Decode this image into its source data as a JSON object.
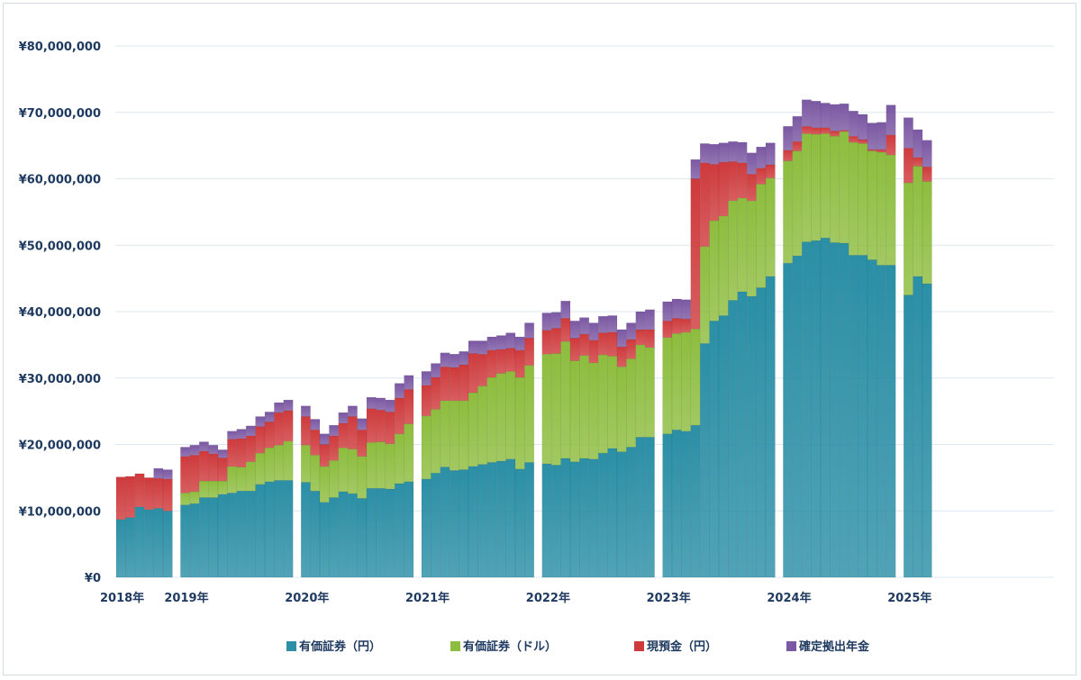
{
  "chart_data": {
    "type": "bar",
    "stacked": true,
    "title": "",
    "xlabel": "",
    "ylabel": "",
    "ylim": [
      0,
      80000000
    ],
    "yticks": [
      0,
      10000000,
      20000000,
      30000000,
      40000000,
      50000000,
      60000000,
      70000000,
      80000000
    ],
    "ytick_labels": [
      "¥0",
      "¥10,000,000",
      "¥20,000,000",
      "¥30,000,000",
      "¥40,000,000",
      "¥50,000,000",
      "¥60,000,000",
      "¥70,000,000",
      "¥80,000,000"
    ],
    "grid": true,
    "legend_position": "bottom",
    "series": [
      {
        "name": "有価証券（円）",
        "color": "#2b8fa6"
      },
      {
        "name": "有価証券（ドル）",
        "color": "#8dbd3e"
      },
      {
        "name": "現預金（円）",
        "color": "#cf3a3c"
      },
      {
        "name": "確定拠出年金",
        "color": "#7b58a3"
      }
    ],
    "years": [
      {
        "label": "2018年",
        "bars": [
          [
            8.7,
            0,
            6.4,
            0
          ],
          [
            9.0,
            0,
            6.2,
            0
          ],
          [
            10.6,
            0,
            5.0,
            0
          ],
          [
            10.2,
            0,
            4.8,
            0
          ],
          [
            10.4,
            0,
            4.5,
            1.5
          ],
          [
            10.0,
            0,
            4.8,
            1.4
          ]
        ]
      },
      {
        "label": "2019年",
        "bars": [
          [
            10.9,
            1.8,
            5.5,
            1.4
          ],
          [
            11.1,
            1.8,
            5.5,
            1.5
          ],
          [
            12.0,
            2.5,
            4.5,
            1.4
          ],
          [
            12.0,
            2.5,
            4.1,
            1.3
          ],
          [
            12.5,
            2.0,
            3.5,
            1.2
          ],
          [
            12.7,
            4.0,
            4.1,
            1.2
          ],
          [
            13.0,
            3.6,
            4.3,
            1.4
          ],
          [
            13.0,
            4.4,
            3.9,
            1.5
          ],
          [
            14.0,
            4.7,
            4.0,
            1.5
          ],
          [
            14.4,
            5.1,
            3.9,
            1.5
          ],
          [
            14.6,
            5.3,
            4.9,
            1.5
          ],
          [
            14.6,
            5.9,
            4.6,
            1.6
          ]
        ]
      },
      {
        "label": "2020年",
        "bars": [
          [
            14.3,
            5.6,
            4.3,
            1.6
          ],
          [
            13.0,
            5.4,
            3.8,
            1.6
          ],
          [
            11.3,
            5.4,
            3.3,
            1.6
          ],
          [
            12.0,
            5.6,
            3.7,
            1.6
          ],
          [
            12.9,
            6.6,
            3.7,
            1.6
          ],
          [
            12.6,
            6.7,
            4.9,
            1.6
          ],
          [
            11.9,
            6.3,
            4.0,
            1.7
          ],
          [
            13.4,
            6.9,
            5.1,
            1.7
          ],
          [
            13.4,
            7.0,
            4.8,
            1.8
          ],
          [
            13.3,
            6.8,
            4.8,
            1.8
          ],
          [
            14.1,
            7.5,
            5.4,
            2.2
          ],
          [
            14.4,
            8.7,
            5.2,
            2.1
          ]
        ]
      },
      {
        "label": "2021年",
        "bars": [
          [
            14.8,
            9.5,
            4.6,
            2.1
          ],
          [
            15.7,
            9.6,
            4.8,
            2.1
          ],
          [
            16.6,
            10.0,
            5.1,
            2.1
          ],
          [
            16.1,
            10.5,
            5.0,
            2.0
          ],
          [
            16.2,
            10.4,
            5.4,
            2.0
          ],
          [
            16.7,
            11.1,
            5.9,
            1.9
          ],
          [
            17.0,
            11.8,
            4.8,
            2.0
          ],
          [
            17.3,
            12.8,
            4.1,
            2.0
          ],
          [
            17.5,
            13.2,
            3.6,
            2.1
          ],
          [
            17.8,
            13.2,
            3.5,
            2.3
          ],
          [
            16.3,
            13.8,
            4.1,
            2.0
          ],
          [
            17.3,
            14.6,
            4.1,
            2.3
          ]
        ]
      },
      {
        "label": "2022年",
        "bars": [
          [
            17.1,
            16.5,
            3.6,
            2.6
          ],
          [
            16.9,
            16.8,
            3.8,
            2.4
          ],
          [
            17.9,
            17.6,
            3.5,
            2.6
          ],
          [
            17.4,
            15.2,
            3.4,
            2.6
          ],
          [
            17.9,
            15.5,
            3.2,
            2.5
          ],
          [
            17.8,
            14.5,
            3.4,
            2.6
          ],
          [
            18.7,
            14.8,
            3.3,
            2.5
          ],
          [
            19.4,
            13.9,
            3.6,
            2.5
          ],
          [
            18.9,
            12.8,
            3.0,
            2.6
          ],
          [
            19.6,
            13.3,
            2.9,
            2.5
          ],
          [
            21.1,
            13.9,
            2.3,
            2.7
          ],
          [
            21.1,
            13.5,
            2.7,
            3.0
          ]
        ]
      },
      {
        "label": "2023年",
        "bars": [
          [
            21.6,
            14.5,
            2.5,
            2.9
          ],
          [
            22.2,
            14.5,
            2.3,
            2.9
          ],
          [
            22.0,
            14.9,
            2.0,
            2.9
          ],
          [
            22.9,
            14.5,
            22.6,
            2.9
          ],
          [
            35.2,
            14.6,
            12.6,
            2.9
          ],
          [
            38.6,
            15.1,
            8.5,
            3.0
          ],
          [
            39.4,
            15.0,
            8.1,
            2.9
          ],
          [
            41.7,
            15.0,
            5.9,
            3.0
          ],
          [
            43.0,
            14.1,
            5.3,
            3.1
          ],
          [
            42.3,
            14.4,
            4.0,
            3.2
          ],
          [
            43.6,
            15.6,
            2.4,
            3.2
          ],
          [
            45.3,
            14.8,
            2.0,
            3.3
          ]
        ]
      },
      {
        "label": "2024年",
        "bars": [
          [
            47.3,
            15.4,
            1.6,
            3.6
          ],
          [
            48.4,
            15.8,
            1.4,
            3.8
          ],
          [
            50.5,
            16.3,
            1.1,
            4.0
          ],
          [
            50.7,
            16.0,
            1.0,
            4.0
          ],
          [
            51.1,
            15.7,
            0.9,
            3.7
          ],
          [
            50.4,
            16.0,
            0.8,
            4.0
          ],
          [
            50.3,
            16.8,
            0.2,
            4.0
          ],
          [
            48.5,
            17.0,
            0.9,
            3.8
          ],
          [
            48.5,
            16.8,
            0.6,
            3.8
          ],
          [
            47.8,
            16.4,
            0.2,
            4.0
          ],
          [
            47.0,
            17.0,
            0.4,
            4.1
          ],
          [
            47.0,
            16.6,
            3.0,
            4.5
          ]
        ]
      },
      {
        "label": "2025年",
        "bars": [
          [
            42.5,
            16.9,
            5.2,
            4.6
          ],
          [
            45.3,
            16.6,
            1.3,
            4.2
          ],
          [
            44.2,
            15.4,
            2.2,
            4.0
          ]
        ]
      }
    ]
  }
}
